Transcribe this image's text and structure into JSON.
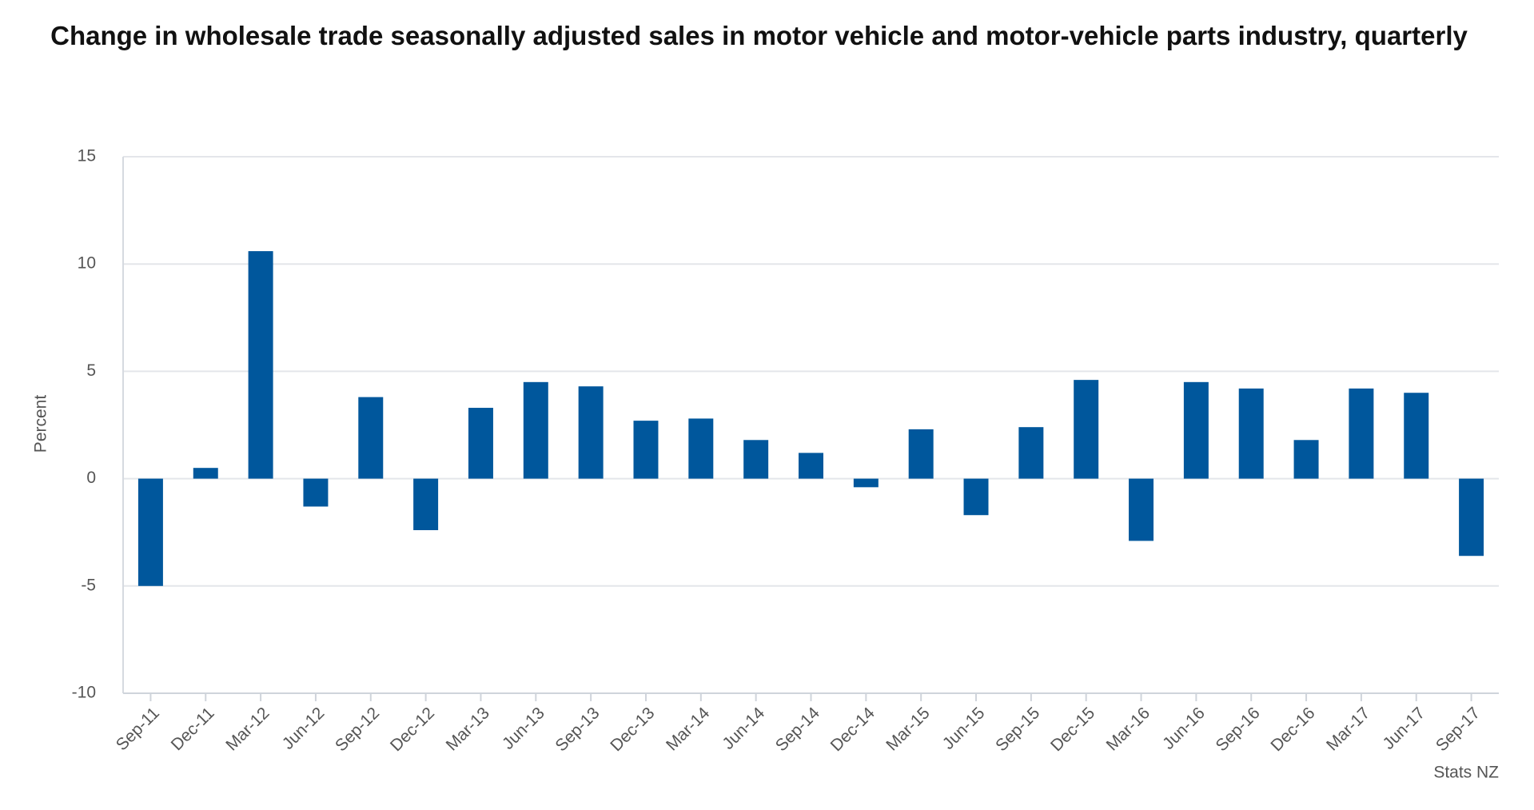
{
  "chart_data": {
    "type": "bar",
    "title": "Change in wholesale trade seasonally adjusted sales in motor vehicle and motor-vehicle parts industry, quarterly",
    "y_label": "Percent",
    "source": "Stats NZ",
    "categories": [
      "Sep-11",
      "Dec-11",
      "Mar-12",
      "Jun-12",
      "Sep-12",
      "Dec-12",
      "Mar-13",
      "Jun-13",
      "Sep-13",
      "Dec-13",
      "Mar-14",
      "Jun-14",
      "Sep-14",
      "Dec-14",
      "Mar-15",
      "Jun-15",
      "Sep-15",
      "Dec-15",
      "Mar-16",
      "Jun-16",
      "Sep-16",
      "Dec-16",
      "Mar-17",
      "Jun-17",
      "Sep-17"
    ],
    "values": [
      -5.0,
      0.5,
      10.6,
      -1.3,
      3.8,
      -2.4,
      3.3,
      4.5,
      4.3,
      2.7,
      2.8,
      1.8,
      1.2,
      -0.4,
      2.3,
      -1.7,
      2.4,
      4.6,
      -2.9,
      4.5,
      4.2,
      1.8,
      4.2,
      4.0,
      -3.6
    ],
    "color": "#00579c",
    "ylim": [
      -10,
      15
    ],
    "yticks": [
      -10,
      -5,
      0,
      5,
      10,
      15
    ],
    "grid": true
  }
}
